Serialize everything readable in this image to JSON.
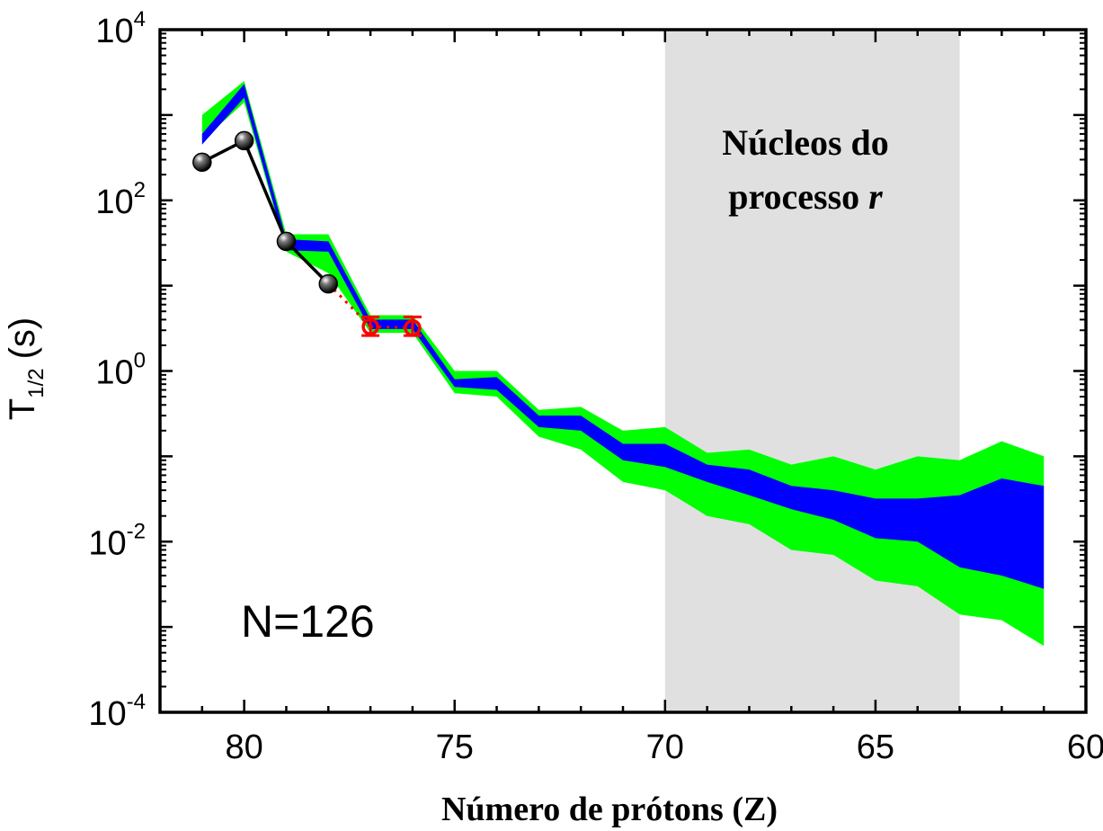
{
  "chart_data": {
    "type": "area",
    "xlabel": "Número de prótons (Z)",
    "ylabel_main": "T",
    "ylabel_sub": "1/2",
    "ylabel_unit": "(s)",
    "x_reversed": true,
    "xlim": [
      82,
      60
    ],
    "ylim": [
      0.0001,
      10000
    ],
    "ylog": true,
    "x_ticks": [
      {
        "value": 80,
        "label": "80"
      },
      {
        "value": 75,
        "label": "75"
      },
      {
        "value": 70,
        "label": "70"
      },
      {
        "value": 65,
        "label": "65"
      },
      {
        "value": 60,
        "label": "60"
      }
    ],
    "y_ticks": [
      {
        "value": 0.0001,
        "base": "10",
        "exp": "-4"
      },
      {
        "value": 0.01,
        "base": "10",
        "exp": "-2"
      },
      {
        "value": 1,
        "base": "10",
        "exp": "0"
      },
      {
        "value": 100,
        "base": "10",
        "exp": "2"
      },
      {
        "value": 10000,
        "base": "10",
        "exp": "4"
      }
    ],
    "shaded_region": {
      "x_from": 70,
      "x_to": 63,
      "color": "#e0e0e0",
      "label_line1": "Núcleos do",
      "label_line2": "processo",
      "label_italic": "r"
    },
    "annotation": "N=126",
    "bands": [
      {
        "color": "#00ff00",
        "x": [
          81,
          80,
          79,
          78,
          77,
          76,
          75,
          74,
          73,
          72,
          71,
          70,
          69,
          68,
          67,
          66,
          65,
          64,
          63,
          62,
          61
        ],
        "upper": [
          1000,
          2500,
          40,
          40,
          4.5,
          4.5,
          1.0,
          1.0,
          0.35,
          0.38,
          0.2,
          0.22,
          0.11,
          0.12,
          0.08,
          0.1,
          0.07,
          0.1,
          0.09,
          0.15,
          0.1
        ],
        "lower": [
          500,
          1400,
          25,
          14,
          2.8,
          2.8,
          0.55,
          0.5,
          0.17,
          0.12,
          0.05,
          0.04,
          0.02,
          0.016,
          0.008,
          0.007,
          0.0035,
          0.003,
          0.0014,
          0.0012,
          0.0006
        ]
      },
      {
        "color": "#0000ff",
        "x": [
          81,
          80,
          79,
          78,
          77,
          76,
          75,
          74,
          73,
          72,
          71,
          70,
          69,
          68,
          67,
          66,
          65,
          64,
          63,
          62,
          61
        ],
        "upper": [
          600,
          2300,
          35,
          33,
          4.0,
          4.0,
          0.8,
          0.85,
          0.3,
          0.3,
          0.14,
          0.14,
          0.08,
          0.07,
          0.045,
          0.04,
          0.032,
          0.032,
          0.035,
          0.055,
          0.045
        ],
        "lower": [
          450,
          1600,
          26,
          25,
          3.1,
          3.1,
          0.65,
          0.6,
          0.22,
          0.2,
          0.09,
          0.075,
          0.05,
          0.035,
          0.024,
          0.018,
          0.011,
          0.01,
          0.005,
          0.004,
          0.0028
        ]
      }
    ],
    "series": [
      {
        "style": "black-spheres-line",
        "color": "#000000",
        "x": [
          81,
          80,
          79,
          78
        ],
        "y": [
          280,
          500,
          33,
          10.5
        ]
      },
      {
        "style": "red-open-circles-errorbars",
        "color": "#ff0000",
        "x": [
          77,
          76
        ],
        "y": [
          3.3,
          3.2
        ],
        "y_err_low": [
          2.6,
          2.6
        ],
        "y_err_high": [
          4.3,
          4.3
        ]
      }
    ],
    "connector": {
      "style": "red-dotted",
      "color": "#ff0000",
      "x": [
        78,
        77
      ],
      "y": [
        10.5,
        3.3
      ]
    }
  }
}
